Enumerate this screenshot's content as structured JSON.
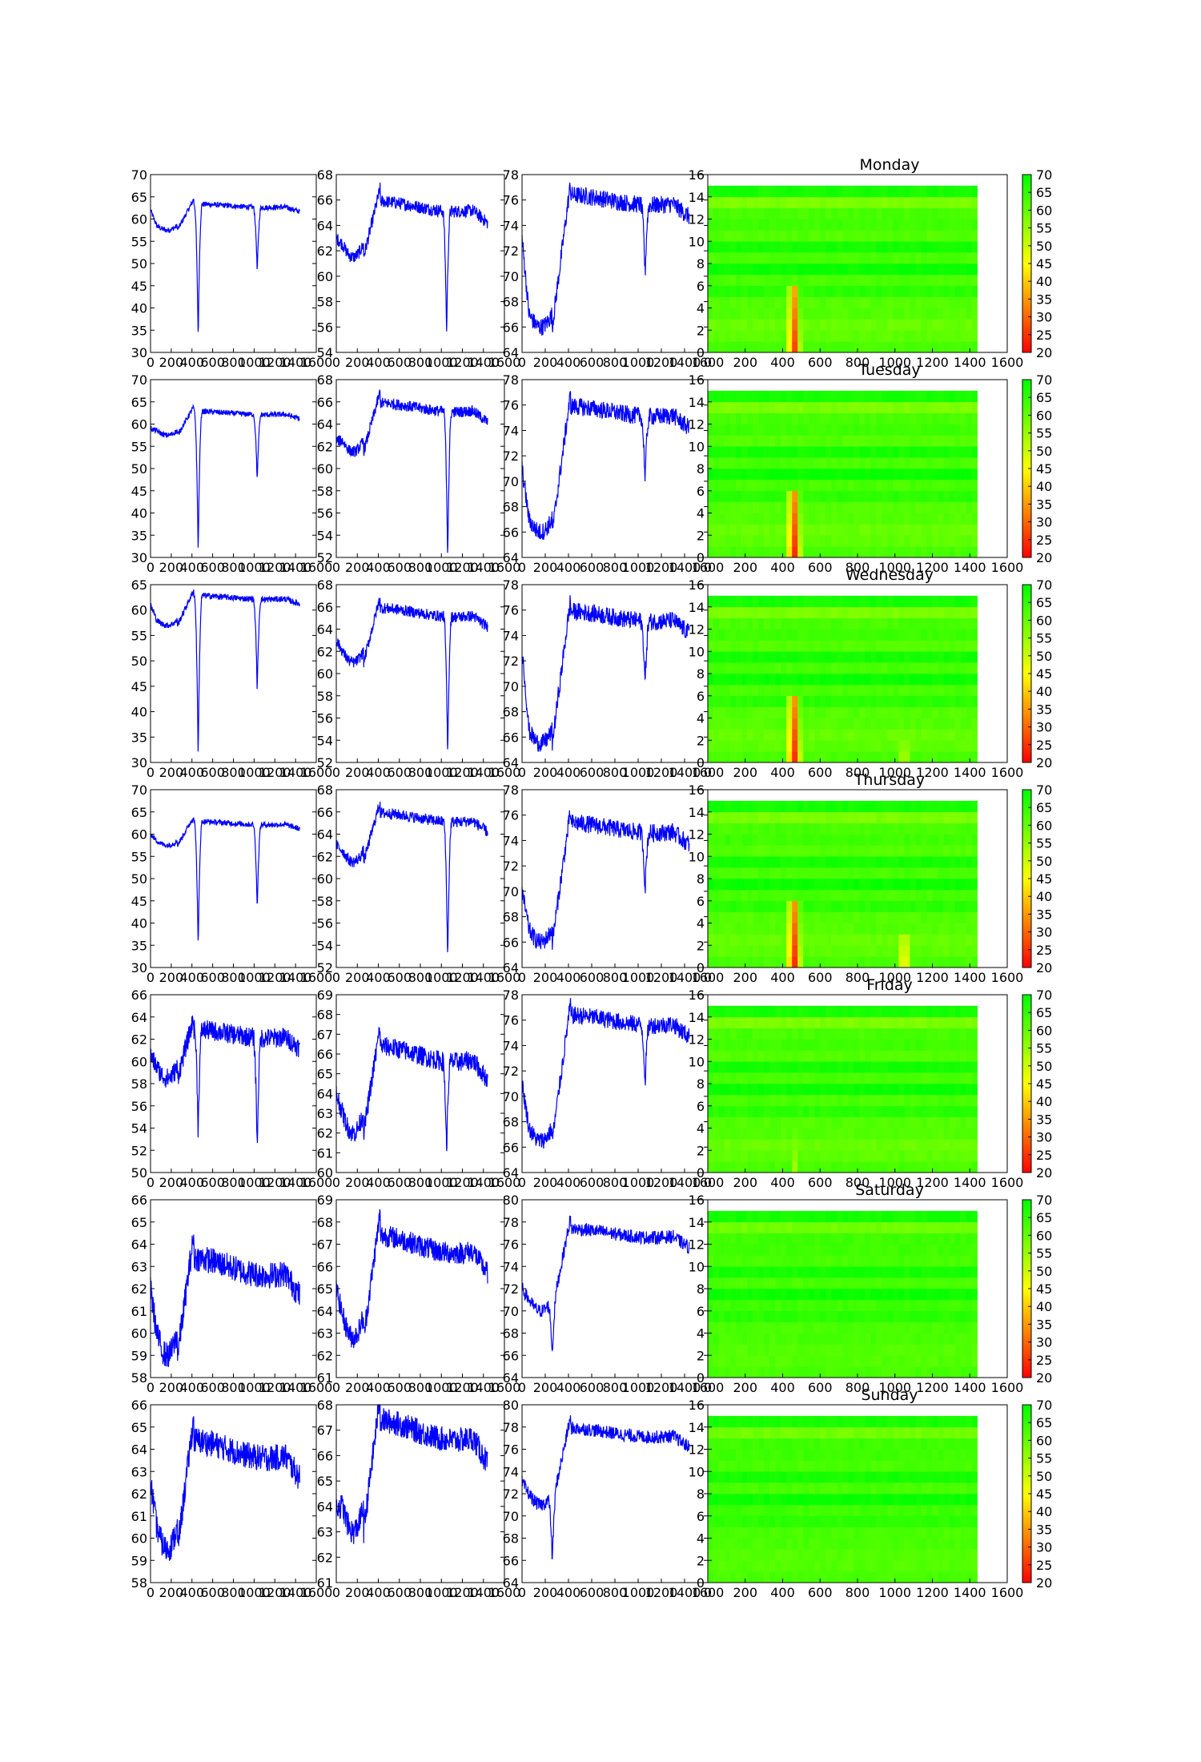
{
  "colors": {
    "line": "#0000ff",
    "heat_low": "#ff0000",
    "heat_mid": "#ffff00",
    "heat_high": "#00ff00"
  },
  "chart_data": {
    "type": "grid",
    "colorbar": {
      "ticks": [
        "20",
        "25",
        "30",
        "35",
        "40",
        "45",
        "50",
        "55",
        "60",
        "65",
        "70"
      ],
      "range": [
        20,
        70
      ],
      "colormap": [
        "#ff0000",
        "#ffff00",
        "#00ff00"
      ]
    },
    "heatmap_x_ticks": [
      "0",
      "200",
      "400",
      "600",
      "800",
      "1000",
      "1200",
      "1400",
      "1600"
    ],
    "heatmap_y_ticks": [
      "0",
      "2",
      "4",
      "6",
      "8",
      "10",
      "12",
      "14",
      "16"
    ],
    "line_x_ticks": [
      "0",
      "200",
      "400",
      "600",
      "800",
      "1000",
      "1200",
      "1400",
      "1600"
    ],
    "x_range": [
      0,
      1600
    ],
    "rows": [
      {
        "day": "Monday",
        "line_plots": [
          {
            "type": "line",
            "ylim": [
              30,
              70
            ],
            "yticks": [
              "30",
              "35",
              "40",
              "45",
              "50",
              "55",
              "60",
              "65",
              "70"
            ],
            "shape": {
              "start": 62,
              "baseline": 63,
              "dips": [
                [
                  460,
                  33
                ],
                [
                  1030,
                  48
                ]
              ],
              "morning": 57.5,
              "noise": 0.6
            }
          },
          {
            "type": "line",
            "ylim": [
              54,
              68
            ],
            "yticks": [
              "54",
              "56",
              "58",
              "60",
              "62",
              "64",
              "66",
              "68"
            ],
            "shape": {
              "start": 63,
              "baseline": 65.5,
              "dips": [
                [
                  1050,
                  55.5
                ]
              ],
              "morning": 61.5,
              "noise": 0.5
            }
          },
          {
            "type": "line",
            "ylim": [
              64,
              78
            ],
            "yticks": [
              "64",
              "66",
              "68",
              "70",
              "72",
              "74",
              "76",
              "78"
            ],
            "shape": {
              "start": 73,
              "baseline": 76,
              "dips": [
                [
                  1060,
                  70
                ]
              ],
              "morning": 66,
              "noise": 0.7
            }
          }
        ],
        "heatmap": {
          "type": "heatmap",
          "xlim": [
            0,
            1600
          ],
          "ylim": [
            0,
            16
          ],
          "cells_x": 1440,
          "rows": 15,
          "hot_spots": [
            [
              460,
              22,
              6
            ],
            [
              1050,
              55,
              3
            ]
          ],
          "row_levels": [
            63,
            61,
            60,
            62,
            62,
            66,
            63,
            69,
            63,
            68,
            62,
            64,
            63,
            58,
            68
          ]
        }
      },
      {
        "day": "Tuesday",
        "line_plots": [
          {
            "type": "line",
            "ylim": [
              30,
              70
            ],
            "yticks": [
              "30",
              "35",
              "40",
              "45",
              "50",
              "55",
              "60",
              "65",
              "70"
            ],
            "shape": {
              "start": 59,
              "baseline": 62.5,
              "dips": [
                [
                  460,
                  31
                ],
                [
                  1030,
                  47
                ]
              ],
              "morning": 57.5,
              "noise": 0.6
            }
          },
          {
            "type": "line",
            "ylim": [
              52,
              68
            ],
            "yticks": [
              "52",
              "54",
              "56",
              "58",
              "60",
              "62",
              "64",
              "66",
              "68"
            ],
            "shape": {
              "start": 62.5,
              "baseline": 65.5,
              "dips": [
                [
                  1060,
                  52
                ]
              ],
              "morning": 61.5,
              "noise": 0.5
            }
          },
          {
            "type": "line",
            "ylim": [
              64,
              78
            ],
            "yticks": [
              "64",
              "66",
              "68",
              "70",
              "72",
              "74",
              "76",
              "78"
            ],
            "shape": {
              "start": 71,
              "baseline": 75.5,
              "dips": [
                [
                  1060,
                  70
                ]
              ],
              "morning": 66,
              "noise": 0.7
            }
          }
        ],
        "heatmap": {
          "type": "heatmap",
          "xlim": [
            0,
            1600
          ],
          "ylim": [
            0,
            16
          ],
          "cells_x": 1440,
          "rows": 15,
          "hot_spots": [
            [
              460,
              20,
              6
            ],
            [
              1050,
              52,
              3
            ]
          ],
          "row_levels": [
            63,
            61,
            60,
            62,
            62,
            66,
            63,
            69,
            63,
            68,
            62,
            64,
            63,
            58,
            68
          ]
        }
      },
      {
        "day": "Wednesday",
        "line_plots": [
          {
            "type": "line",
            "ylim": [
              30,
              65
            ],
            "yticks": [
              "30",
              "35",
              "40",
              "45",
              "50",
              "55",
              "60",
              "65"
            ],
            "shape": {
              "start": 61,
              "baseline": 62.5,
              "dips": [
                [
                  460,
                  31
                ],
                [
                  1030,
                  44
                ]
              ],
              "morning": 57,
              "noise": 0.6
            }
          },
          {
            "type": "line",
            "ylim": [
              52,
              68
            ],
            "yticks": [
              "52",
              "54",
              "56",
              "58",
              "60",
              "62",
              "64",
              "66",
              "68"
            ],
            "shape": {
              "start": 63,
              "baseline": 65.5,
              "dips": [
                [
                  1060,
                  52.5
                ]
              ],
              "morning": 61,
              "noise": 0.5
            }
          },
          {
            "type": "line",
            "ylim": [
              64,
              78
            ],
            "yticks": [
              "64",
              "66",
              "68",
              "70",
              "72",
              "74",
              "76",
              "78"
            ],
            "shape": {
              "start": 73,
              "baseline": 75.5,
              "dips": [
                [
                  1060,
                  70
                ]
              ],
              "morning": 65.5,
              "noise": 0.7
            }
          }
        ],
        "heatmap": {
          "type": "heatmap",
          "xlim": [
            0,
            1600
          ],
          "ylim": [
            0,
            16
          ],
          "cells_x": 1440,
          "rows": 15,
          "hot_spots": [
            [
              460,
              20,
              6
            ],
            [
              1050,
              42,
              3
            ]
          ],
          "row_levels": [
            63,
            61,
            60,
            62,
            62,
            66,
            63,
            69,
            63,
            68,
            62,
            64,
            63,
            58,
            68
          ]
        }
      },
      {
        "day": "Thursday",
        "line_plots": [
          {
            "type": "line",
            "ylim": [
              30,
              70
            ],
            "yticks": [
              "30",
              "35",
              "40",
              "45",
              "50",
              "55",
              "60",
              "65",
              "70"
            ],
            "shape": {
              "start": 60,
              "baseline": 62.5,
              "dips": [
                [
                  460,
                  34
                ],
                [
                  1030,
                  43
                ]
              ],
              "morning": 57.5,
              "noise": 0.6
            }
          },
          {
            "type": "line",
            "ylim": [
              52,
              68
            ],
            "yticks": [
              "52",
              "54",
              "56",
              "58",
              "60",
              "62",
              "64",
              "66",
              "68"
            ],
            "shape": {
              "start": 63,
              "baseline": 65.5,
              "dips": [
                [
                  1060,
                  52.5
                ]
              ],
              "morning": 61.5,
              "noise": 0.5
            }
          },
          {
            "type": "line",
            "ylim": [
              64,
              78
            ],
            "yticks": [
              "64",
              "66",
              "68",
              "70",
              "72",
              "74",
              "76",
              "78"
            ],
            "shape": {
              "start": 70,
              "baseline": 75,
              "dips": [
                [
                  1060,
                  70
                ]
              ],
              "morning": 66,
              "noise": 0.7
            }
          }
        ],
        "heatmap": {
          "type": "heatmap",
          "xlim": [
            0,
            1600
          ],
          "ylim": [
            0,
            16
          ],
          "cells_x": 1440,
          "rows": 15,
          "hot_spots": [
            [
              460,
              20,
              6
            ],
            [
              1050,
              35,
              3
            ]
          ],
          "row_levels": [
            63,
            61,
            60,
            62,
            62,
            66,
            63,
            69,
            63,
            68,
            62,
            64,
            63,
            58,
            68
          ]
        }
      },
      {
        "day": "Friday",
        "line_plots": [
          {
            "type": "line",
            "ylim": [
              50,
              66
            ],
            "yticks": [
              "50",
              "52",
              "54",
              "56",
              "58",
              "60",
              "62",
              "64",
              "66"
            ],
            "shape": {
              "start": 60.5,
              "baseline": 62.5,
              "dips": [
                [
                  460,
                  53.5
                ],
                [
                  1030,
                  52
                ]
              ],
              "morning": 58.5,
              "noise": 0.9
            }
          },
          {
            "type": "line",
            "ylim": [
              60,
              69
            ],
            "yticks": [
              "60",
              "61",
              "62",
              "63",
              "64",
              "65",
              "66",
              "67",
              "68",
              "69"
            ],
            "shape": {
              "start": 64,
              "baseline": 66,
              "dips": [
                [
                  1050,
                  61
                ]
              ],
              "morning": 62,
              "noise": 0.5
            }
          },
          {
            "type": "line",
            "ylim": [
              64,
              78
            ],
            "yticks": [
              "64",
              "66",
              "68",
              "70",
              "72",
              "74",
              "76",
              "78"
            ],
            "shape": {
              "start": 71,
              "baseline": 76,
              "dips": [
                [
                  1060,
                  71
                ]
              ],
              "morning": 66.5,
              "noise": 0.7
            }
          }
        ],
        "heatmap": {
          "type": "heatmap",
          "xlim": [
            0,
            1600
          ],
          "ylim": [
            0,
            16
          ],
          "cells_x": 1440,
          "rows": 15,
          "hot_spots": [
            [
              460,
              50,
              5
            ],
            [
              1050,
              58,
              3
            ]
          ],
          "row_levels": [
            63,
            61,
            60,
            62,
            62,
            66,
            63,
            69,
            63,
            68,
            62,
            64,
            63,
            58,
            68
          ]
        }
      },
      {
        "day": "Saturday",
        "line_plots": [
          {
            "type": "line",
            "ylim": [
              58,
              66
            ],
            "yticks": [
              "58",
              "59",
              "60",
              "61",
              "62",
              "63",
              "64",
              "65",
              "66"
            ],
            "shape": {
              "start": 62,
              "baseline": 63,
              "dips": [],
              "morning": 59,
              "noise": 0.6
            }
          },
          {
            "type": "line",
            "ylim": [
              61,
              69
            ],
            "yticks": [
              "61",
              "62",
              "63",
              "64",
              "65",
              "66",
              "67",
              "68",
              "69"
            ],
            "shape": {
              "start": 65,
              "baseline": 67,
              "dips": [],
              "morning": 62.8,
              "noise": 0.5
            }
          },
          {
            "type": "line",
            "ylim": [
              64,
              80
            ],
            "yticks": [
              "64",
              "66",
              "68",
              "70",
              "72",
              "74",
              "76",
              "78",
              "80"
            ],
            "shape": {
              "start": 72,
              "baseline": 77,
              "dips": [
                [
                  260,
                  66
                ]
              ],
              "morning": 70,
              "noise": 0.6
            }
          }
        ],
        "heatmap": {
          "type": "heatmap",
          "xlim": [
            0,
            1600
          ],
          "ylim": [
            0,
            16
          ],
          "cells_x": 1440,
          "rows": 15,
          "hot_spots": [],
          "row_levels": [
            63,
            62,
            62,
            63,
            63,
            66,
            64,
            69,
            63,
            68,
            63,
            64,
            64,
            59,
            68
          ]
        }
      },
      {
        "day": "Sunday",
        "line_plots": [
          {
            "type": "line",
            "ylim": [
              58,
              66
            ],
            "yticks": [
              "58",
              "59",
              "60",
              "61",
              "62",
              "63",
              "64",
              "65",
              "66"
            ],
            "shape": {
              "start": 62.5,
              "baseline": 64,
              "dips": [],
              "morning": 59.5,
              "noise": 0.6
            }
          },
          {
            "type": "line",
            "ylim": [
              61,
              68
            ],
            "yticks": [
              "61",
              "62",
              "63",
              "64",
              "65",
              "66",
              "67",
              "68"
            ],
            "shape": {
              "start": 64,
              "baseline": 67,
              "dips": [],
              "morning": 63,
              "noise": 0.5
            }
          },
          {
            "type": "line",
            "ylim": [
              64,
              80
            ],
            "yticks": [
              "64",
              "66",
              "68",
              "70",
              "72",
              "74",
              "76",
              "78",
              "80"
            ],
            "shape": {
              "start": 73,
              "baseline": 77.5,
              "dips": [
                [
                  260,
                  66
                ]
              ],
              "morning": 71,
              "noise": 0.6
            }
          }
        ],
        "heatmap": {
          "type": "heatmap",
          "xlim": [
            0,
            1600
          ],
          "ylim": [
            0,
            16
          ],
          "cells_x": 1440,
          "rows": 15,
          "hot_spots": [],
          "row_levels": [
            63,
            62,
            62,
            63,
            63,
            66,
            64,
            69,
            63,
            68,
            63,
            64,
            64,
            59,
            68
          ]
        }
      }
    ]
  }
}
